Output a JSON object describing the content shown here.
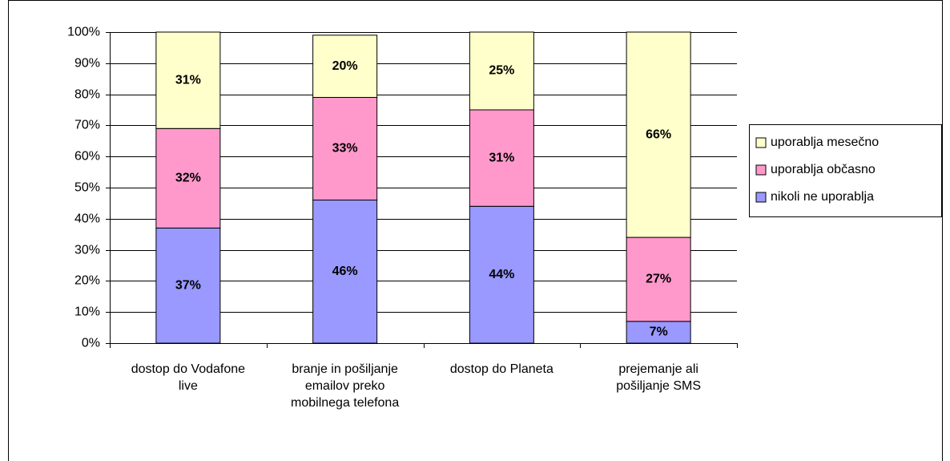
{
  "chart_data": {
    "type": "stacked_bar",
    "categories": [
      "dostop do Vodafone live",
      "branje in pošiljanje emailov preko mobilnega telefona",
      "dostop do Planeta",
      "prejemanje ali pošiljanje SMS"
    ],
    "series": [
      {
        "name": "nikoli ne uporablja",
        "color": "#9999ff",
        "values": [
          37,
          46,
          44,
          7
        ],
        "value_labels": [
          "37%",
          "46%",
          "44%",
          "7%"
        ]
      },
      {
        "name": "uporablja občasno",
        "color": "#ff99cc",
        "values": [
          32,
          33,
          31,
          27
        ],
        "value_labels": [
          "32%",
          "33%",
          "31%",
          "27%"
        ]
      },
      {
        "name": "uporablja mesečno",
        "color": "#ffffcc",
        "values": [
          31,
          20,
          25,
          66
        ],
        "value_labels": [
          "31%",
          "20%",
          "25%",
          "66%"
        ]
      }
    ],
    "ylim": [
      0,
      100
    ],
    "yticks": [
      {
        "value": 0,
        "label": "0%"
      },
      {
        "value": 10,
        "label": "10%"
      },
      {
        "value": 20,
        "label": "20%"
      },
      {
        "value": 30,
        "label": "30%"
      },
      {
        "value": 40,
        "label": "40%"
      },
      {
        "value": 50,
        "label": "50%"
      },
      {
        "value": 60,
        "label": "60%"
      },
      {
        "value": 70,
        "label": "70%"
      },
      {
        "value": 80,
        "label": "80%"
      },
      {
        "value": 90,
        "label": "90%"
      },
      {
        "value": 100,
        "label": "100%"
      }
    ],
    "grid": true,
    "legend": "right"
  }
}
